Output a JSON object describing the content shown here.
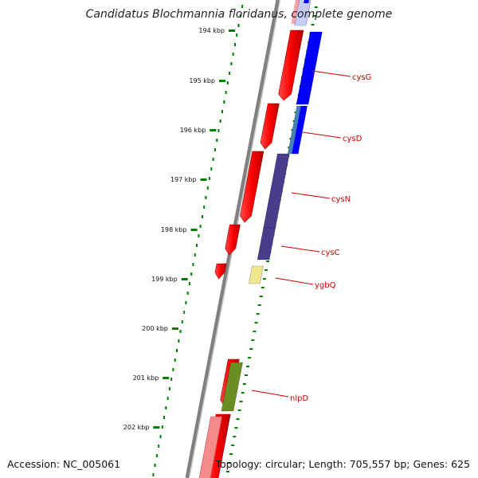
{
  "title": "Candidatus Blochmannia floridanus, complete genome",
  "accession": "Accession: NC_005061",
  "summary": "Topology: circular; Length: 705,557 bp; Genes: 625",
  "ticks": [
    {
      "label": "194 kbp"
    },
    {
      "label": "195 kbp"
    },
    {
      "label": "196 kbp"
    },
    {
      "label": "197 kbp"
    },
    {
      "label": "198 kbp"
    },
    {
      "label": "199 kbp"
    },
    {
      "label": "200 kbp"
    },
    {
      "label": "201 kbp"
    },
    {
      "label": "202 kbp"
    }
  ],
  "genes": [
    {
      "name": "cysG",
      "color": "#0000ff"
    },
    {
      "name": "cysD",
      "color": "#0000ff"
    },
    {
      "name": "cysN",
      "color": "#483d8b"
    },
    {
      "name": "cysC",
      "color": "#483d8b"
    },
    {
      "name": "ygbQ",
      "color": "#f0e68c"
    },
    {
      "name": "nlpD",
      "color": "#6b8e23"
    }
  ],
  "colors": {
    "forward_cds": "#ff0000",
    "tick_mark": "#008000",
    "backbone": "#808080",
    "gene_label": "#cc0000"
  }
}
